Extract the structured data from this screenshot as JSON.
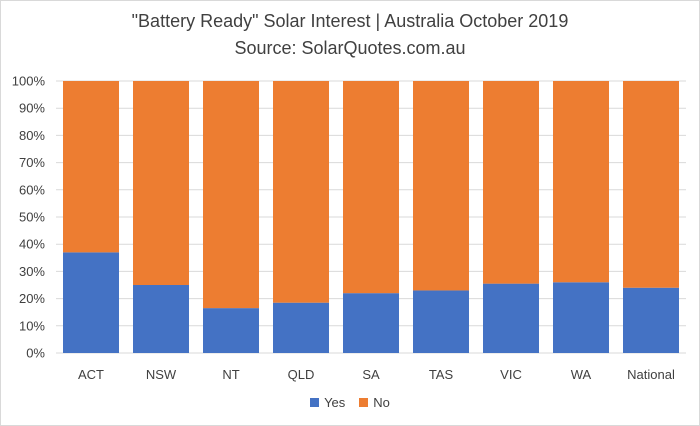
{
  "chart_data": {
    "type": "bar",
    "stacked": true,
    "title": "\"Battery Ready\" Solar Interest | Australia October 2019",
    "subtitle": "Source: SolarQuotes.com.au",
    "xlabel": "",
    "ylabel": "",
    "categories": [
      "ACT",
      "NSW",
      "NT",
      "QLD",
      "SA",
      "TAS",
      "VIC",
      "WA",
      "National"
    ],
    "series": [
      {
        "name": "Yes",
        "color": "#4472c4",
        "values": [
          37,
          25,
          16.5,
          18.5,
          22,
          23,
          25.5,
          26,
          24
        ]
      },
      {
        "name": "No",
        "color": "#ed7d31",
        "values": [
          63,
          75,
          83.5,
          81.5,
          78,
          77,
          74.5,
          74,
          76
        ]
      }
    ],
    "ylim": [
      0,
      100
    ],
    "yticks": [
      "0%",
      "10%",
      "20%",
      "30%",
      "40%",
      "50%",
      "60%",
      "70%",
      "80%",
      "90%",
      "100%"
    ],
    "grid": true,
    "gridline_color": "#d9d9d9",
    "legend_position": "bottom"
  }
}
